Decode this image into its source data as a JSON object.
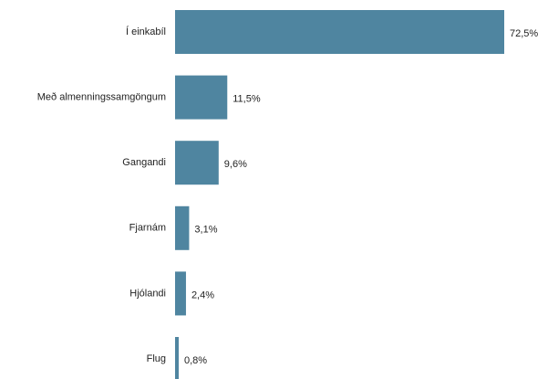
{
  "chart_data": {
    "type": "bar",
    "orientation": "horizontal",
    "categories": [
      "Í einkabíl",
      "Með almenningssamgöngum",
      "Gangandi",
      "Fjarnám",
      "Hjólandi",
      "Flug"
    ],
    "values": [
      72.5,
      11.5,
      9.6,
      3.1,
      2.4,
      0.8
    ],
    "value_labels": [
      "72,5%",
      "11,5%",
      "9,6%",
      "3,1%",
      "2,4%",
      "0,8%"
    ],
    "color": "#4f85a0"
  }
}
